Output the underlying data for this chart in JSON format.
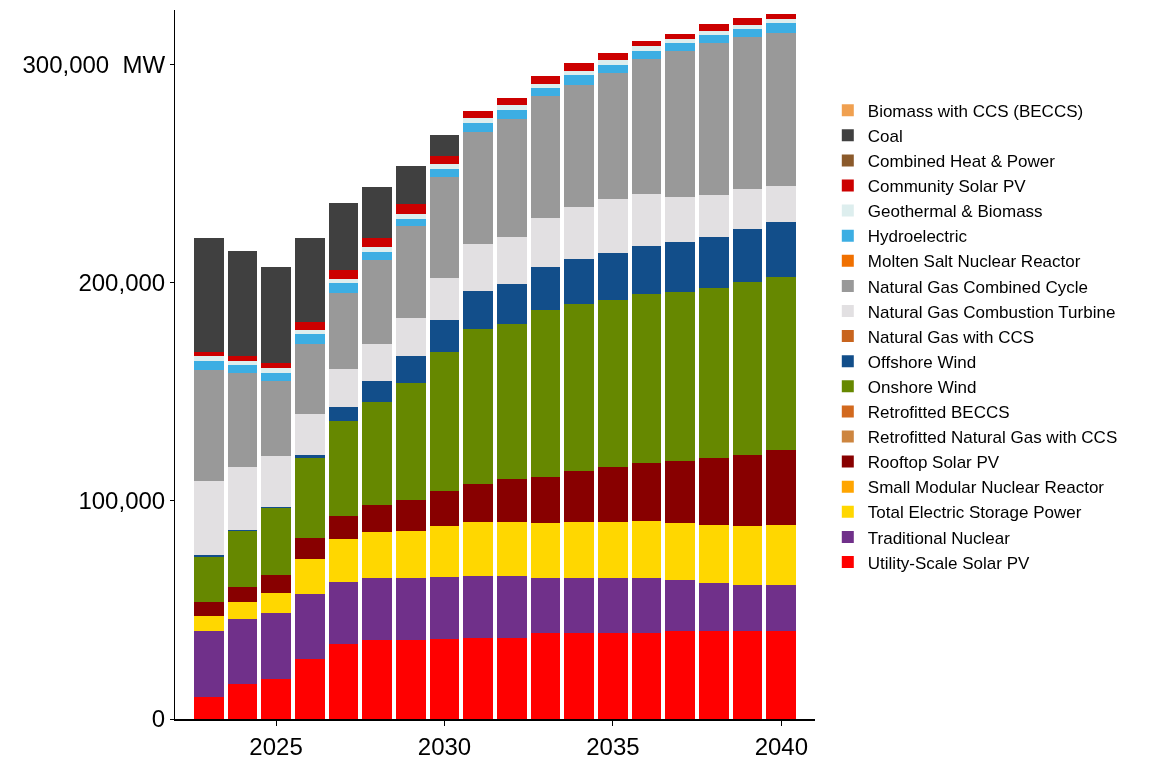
{
  "chart_data": {
    "type": "bar",
    "stacked": true,
    "x": [
      2023,
      2024,
      2025,
      2026,
      2027,
      2028,
      2029,
      2030,
      2031,
      2032,
      2033,
      2034,
      2035,
      2036,
      2037,
      2038,
      2039,
      2040
    ],
    "xlim": [
      2022,
      2041
    ],
    "xticks": [
      2025,
      2030,
      2035,
      2040
    ],
    "ylim": [
      0,
      325000
    ],
    "yticks": [
      0,
      {
        "value": 100000,
        "label": "100,000"
      },
      {
        "value": 200000,
        "label": "200,000"
      },
      {
        "value": 300000,
        "label": "300,000  MW"
      }
    ],
    "grid": false,
    "legend": "right",
    "series": [
      {
        "name": "Utility-Scale Solar PV",
        "color": "#ff0000",
        "values": [
          10200,
          16000,
          18400,
          27300,
          34300,
          36100,
          36100,
          36600,
          37100,
          37100,
          39500,
          39500,
          39500,
          39500,
          40300,
          40300,
          40300,
          40300
        ]
      },
      {
        "name": "Traditional Nuclear",
        "color": "#70308a",
        "values": [
          30200,
          30000,
          30300,
          29800,
          28600,
          28600,
          28600,
          28400,
          28600,
          28600,
          25100,
          25100,
          25100,
          25100,
          23200,
          22100,
          20900,
          20900
        ]
      },
      {
        "name": "Total Electric Storage Power",
        "color": "#ffd700",
        "values": [
          6700,
          7500,
          9000,
          16200,
          19500,
          20800,
          21700,
          23400,
          24400,
          24700,
          25100,
          25800,
          25800,
          26200,
          26200,
          26600,
          27400,
          27800
        ]
      },
      {
        "name": "Small Modular Nuclear Reactor",
        "color": "#ffa500",
        "values": [
          0,
          0,
          0,
          0,
          0,
          0,
          0,
          0,
          0,
          0,
          0,
          0,
          0,
          0,
          0,
          0,
          0,
          0
        ]
      },
      {
        "name": "Rooftop Solar PV",
        "color": "#880000",
        "values": [
          6600,
          7200,
          8100,
          9500,
          10800,
          12800,
          14000,
          16300,
          17400,
          19700,
          21300,
          23300,
          25100,
          26600,
          28700,
          30500,
          32400,
          34200
        ]
      },
      {
        "name": "Retrofitted Natural Gas with CCS",
        "color": "#cd853f",
        "values": [
          0,
          0,
          0,
          0,
          0,
          0,
          0,
          0,
          0,
          0,
          0,
          0,
          0,
          0,
          0,
          0,
          0,
          0
        ]
      },
      {
        "name": "Retrofitted BECCS",
        "color": "#d2691e",
        "values": [
          0,
          0,
          0,
          0,
          0,
          0,
          0,
          0,
          0,
          0,
          0,
          0,
          0,
          0,
          0,
          0,
          0,
          0
        ]
      },
      {
        "name": "Onshore Wind",
        "color": "#668800",
        "values": [
          20700,
          25400,
          30800,
          36900,
          43400,
          47200,
          53600,
          63400,
          71300,
          71000,
          76300,
          76400,
          76400,
          77200,
          77300,
          77900,
          79400,
          79600
        ]
      },
      {
        "name": "Offshore Wind",
        "color": "#124e8a",
        "values": [
          600,
          500,
          800,
          1300,
          6500,
          9400,
          12300,
          14800,
          17500,
          18300,
          20000,
          20800,
          21600,
          22100,
          22800,
          23600,
          24300,
          25100
        ]
      },
      {
        "name": "Natural Gas with CCS",
        "color": "#c8641e",
        "values": [
          0,
          0,
          0,
          0,
          0,
          0,
          0,
          0,
          0,
          0,
          0,
          0,
          0,
          0,
          0,
          0,
          0,
          0
        ]
      },
      {
        "name": "Natural Gas Combustion Turbine",
        "color": "#e2e0e2",
        "values": [
          34300,
          29100,
          23200,
          18800,
          17500,
          16900,
          17400,
          19200,
          21500,
          21600,
          22500,
          23600,
          24900,
          24100,
          21000,
          19300,
          18400,
          16500
        ]
      },
      {
        "name": "Natural Gas Combined Cycle",
        "color": "#999999",
        "values": [
          50900,
          42700,
          34300,
          32300,
          34900,
          38700,
          42400,
          46400,
          51500,
          53900,
          56000,
          56300,
          57800,
          61700,
          66600,
          69400,
          69700,
          70200
        ]
      },
      {
        "name": "Molten Salt Nuclear Reactor",
        "color": "#f07000",
        "values": [
          0,
          0,
          0,
          0,
          0,
          0,
          0,
          0,
          0,
          0,
          0,
          0,
          0,
          0,
          0,
          0,
          0,
          0
        ]
      },
      {
        "name": "Hydroelectric",
        "color": "#3caee3",
        "values": [
          4000,
          3800,
          3900,
          4200,
          4200,
          3700,
          3100,
          3600,
          3700,
          4100,
          3500,
          4500,
          3600,
          3600,
          3600,
          4000,
          3600,
          4500
        ]
      },
      {
        "name": "Geothermal & Biomass",
        "color": "#ddeeee",
        "values": [
          2200,
          2100,
          2200,
          2000,
          2100,
          2300,
          2300,
          2300,
          2300,
          2300,
          2000,
          1800,
          2200,
          2200,
          1800,
          1800,
          1800,
          1800
        ]
      },
      {
        "name": "Community Solar PV",
        "color": "#cc0000",
        "values": [
          2000,
          2100,
          2000,
          3900,
          4200,
          3900,
          4500,
          3600,
          3500,
          3500,
          3500,
          3600,
          3200,
          2700,
          2700,
          3200,
          3100,
          2200
        ]
      },
      {
        "name": "Combined Heat & Power",
        "color": "#8b5a2b",
        "values": [
          0,
          0,
          0,
          0,
          0,
          0,
          0,
          0,
          0,
          0,
          0,
          0,
          0,
          0,
          0,
          0,
          0,
          0
        ]
      },
      {
        "name": "Coal",
        "color": "#404040",
        "values": [
          52300,
          48100,
          44200,
          38300,
          30400,
          23600,
          17500,
          9900,
          0,
          0,
          0,
          0,
          0,
          0,
          0,
          0,
          0,
          0
        ]
      },
      {
        "name": "Biomass with CCS (BECCS)",
        "color": "#f0a050",
        "values": [
          0,
          0,
          0,
          0,
          0,
          0,
          0,
          0,
          0,
          0,
          0,
          0,
          0,
          0,
          0,
          0,
          0,
          0
        ]
      }
    ]
  }
}
